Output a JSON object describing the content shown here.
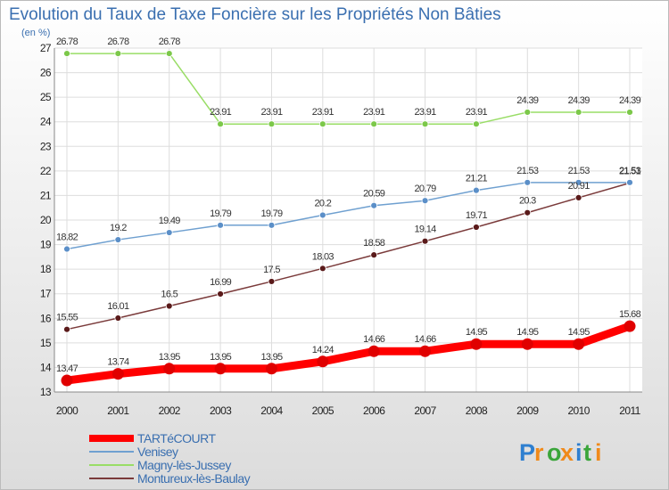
{
  "chart_data": {
    "type": "line",
    "title": "Evolution du Taux de Taxe Foncière sur les Propriétés Non Bâties",
    "ylabel": "(en %)",
    "xlabel": "",
    "x": [
      "2000",
      "2001",
      "2002",
      "2003",
      "2004",
      "2005",
      "2006",
      "2007",
      "2008",
      "2009",
      "2010",
      "2011"
    ],
    "ylim": [
      13,
      27
    ],
    "yticks": [
      "13",
      "14",
      "15",
      "16",
      "17",
      "18",
      "19",
      "20",
      "21",
      "22",
      "23",
      "24",
      "25",
      "26",
      "27"
    ],
    "grid": true,
    "legend_position": "bottom-left",
    "series": [
      {
        "name": "TARTéCOURT",
        "color": "#ff0000",
        "marker": "#e00000",
        "values": [
          13.47,
          13.74,
          13.95,
          13.95,
          13.95,
          14.24,
          14.66,
          14.66,
          14.95,
          14.95,
          14.95,
          15.68
        ],
        "labels": [
          "13.47",
          "13.74",
          "13.95",
          "13.95",
          "13.95",
          "14.24",
          "14.66",
          "14.66",
          "14.95",
          "14.95",
          "14.95",
          "15.68"
        ]
      },
      {
        "name": "Venisey",
        "color": "#6fa0d0",
        "marker": "#5b8fc8",
        "values": [
          18.82,
          19.2,
          19.49,
          19.79,
          19.79,
          20.2,
          20.59,
          20.79,
          21.21,
          21.53,
          21.53,
          21.53
        ],
        "labels": [
          "18.82",
          "19.2",
          "19.49",
          "19.79",
          "19.79",
          "20.2",
          "20.59",
          "20.79",
          "21.21",
          "21.53",
          "21.53",
          "21.53"
        ]
      },
      {
        "name": "Magny-lès-Jussey",
        "color": "#99dd66",
        "marker": "#7cc84a",
        "values": [
          26.78,
          26.78,
          26.78,
          23.91,
          23.91,
          23.91,
          23.91,
          23.91,
          23.91,
          24.39,
          24.39,
          24.39
        ],
        "labels": [
          "26.78",
          "26.78",
          "26.78",
          "23.91",
          "23.91",
          "23.91",
          "23.91",
          "23.91",
          "23.91",
          "24.39",
          "24.39",
          "24.39"
        ]
      },
      {
        "name": "Montureux-lès-Baulay",
        "color": "#7a3a3a",
        "marker": "#5a1a1a",
        "values": [
          15.55,
          16.01,
          16.5,
          16.99,
          17.5,
          18.03,
          18.58,
          19.14,
          19.71,
          20.3,
          20.91,
          21.51
        ],
        "labels": [
          "15.55",
          "16.01",
          "16.5",
          "16.99",
          "17.5",
          "18.03",
          "18.58",
          "19.14",
          "19.71",
          "20.3",
          "20.91",
          "21.51"
        ]
      }
    ]
  },
  "logo": {
    "text": "Proxiti",
    "letters": [
      "P",
      "r",
      "o",
      "x",
      "i",
      "t",
      "i"
    ]
  }
}
